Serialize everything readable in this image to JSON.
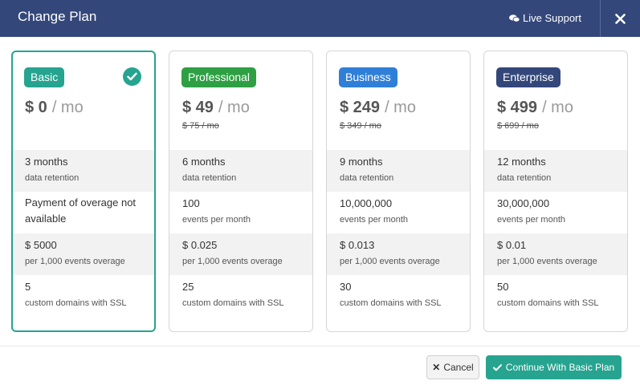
{
  "header": {
    "title": "Change Plan",
    "live_support": "Live Support",
    "close_icon": "close-icon"
  },
  "colors": {
    "header": "#34477a",
    "accent": "#26a490",
    "basic": "#26a490",
    "professional": "#2ea043",
    "business": "#2f7fd8",
    "enterprise": "#34477a"
  },
  "plans": [
    {
      "name": "Basic",
      "selected": true,
      "price": "$ 0",
      "period": "/ mo",
      "old_price": "",
      "retention": "3 months",
      "retention_sub": "data retention",
      "events": "Payment of overage not available",
      "events_sub": "",
      "overage": "$ 5000",
      "overage_sub": "per 1,000 events overage",
      "domains": "5",
      "domains_sub": "custom domains with SSL"
    },
    {
      "name": "Professional",
      "selected": false,
      "price": "$ 49",
      "period": "/ mo",
      "old_price": "$ 75 / mo",
      "retention": "6 months",
      "retention_sub": "data retention",
      "events": "100",
      "events_sub": "events per month",
      "overage": "$ 0.025",
      "overage_sub": "per 1,000 events overage",
      "domains": "25",
      "domains_sub": "custom domains with SSL"
    },
    {
      "name": "Business",
      "selected": false,
      "price": "$ 249",
      "period": "/ mo",
      "old_price": "$ 349 / mo",
      "retention": "9 months",
      "retention_sub": "data retention",
      "events": "10,000,000",
      "events_sub": "events per month",
      "overage": "$ 0.013",
      "overage_sub": "per 1,000 events overage",
      "domains": "30",
      "domains_sub": "custom domains with SSL"
    },
    {
      "name": "Enterprise",
      "selected": false,
      "price": "$ 499",
      "period": "/ mo",
      "old_price": "$ 699 / mo",
      "retention": "12 months",
      "retention_sub": "data retention",
      "events": "30,000,000",
      "events_sub": "events per month",
      "overage": "$ 0.01",
      "overage_sub": "per 1,000 events overage",
      "domains": "50",
      "domains_sub": "custom domains with SSL"
    }
  ],
  "footer": {
    "cancel_label": "Cancel",
    "continue_label": "Continue With Basic Plan"
  }
}
